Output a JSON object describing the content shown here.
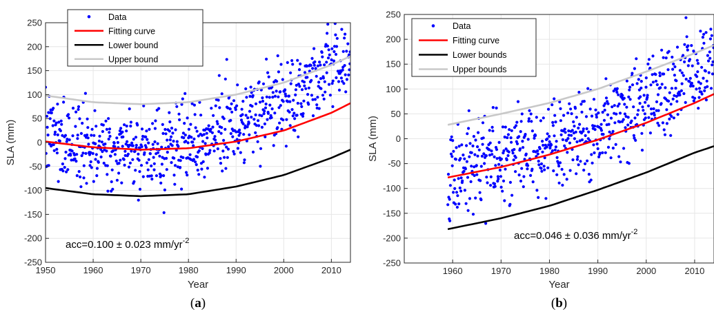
{
  "chart_data": [
    {
      "type": "scatter",
      "panel_label": "a",
      "xlabel": "Year",
      "ylabel": "SLA (mm)",
      "xlim": [
        1950,
        2014
      ],
      "ylim": [
        -250,
        250
      ],
      "x_ticks": [
        1950,
        1960,
        1970,
        1980,
        1990,
        2000,
        2010
      ],
      "y_ticks": [
        -250,
        -200,
        -150,
        -100,
        -50,
        0,
        50,
        100,
        150,
        200,
        250
      ],
      "grid": true,
      "legend": "top-left",
      "annotation": {
        "prefix": "acc=0.100 ± 0.023 mm/yr",
        "sup": "-2"
      },
      "series": [
        {
          "name": "Data",
          "kind": "points",
          "color": "#0000ff",
          "x_range": [
            1950,
            2014
          ],
          "n_points": 768,
          "trend_quadratic": [
            0.1,
            1968,
            -15
          ],
          "noise_sd": 42
        },
        {
          "name": "Fitting curve",
          "kind": "line",
          "color": "#ff0000",
          "x": [
            1950,
            1960,
            1970,
            1980,
            1990,
            2000,
            2010,
            2014
          ],
          "y": [
            2,
            -10,
            -15,
            -12,
            2,
            25,
            62,
            82
          ]
        },
        {
          "name": "Lower bound",
          "kind": "line",
          "color": "#000000",
          "x": [
            1950,
            1960,
            1970,
            1980,
            1990,
            2000,
            2010,
            2014
          ],
          "y": [
            -95,
            -108,
            -112,
            -108,
            -92,
            -68,
            -32,
            -15
          ]
        },
        {
          "name": "Upper bound",
          "kind": "line",
          "color": "#c8c8c8",
          "x": [
            1950,
            1960,
            1970,
            1980,
            1990,
            2000,
            2010,
            2014
          ],
          "y": [
            98,
            84,
            80,
            84,
            100,
            125,
            162,
            180
          ]
        }
      ]
    },
    {
      "type": "scatter",
      "panel_label": "b",
      "xlabel": "Year",
      "ylabel": "SLA (mm)",
      "xlim": [
        1950,
        2014
      ],
      "ylim": [
        -250,
        250
      ],
      "x_ticks": [
        1960,
        1970,
        1980,
        1990,
        2000,
        2010
      ],
      "y_ticks": [
        -250,
        -200,
        -150,
        -100,
        -50,
        0,
        50,
        100,
        150,
        200,
        250
      ],
      "grid": true,
      "legend": "top-left",
      "annotation": {
        "prefix": "acc=0.046 ± 0.036 mm/yr",
        "sup": "-2"
      },
      "series": [
        {
          "name": "Data",
          "kind": "points",
          "color": "#0000ff",
          "x_range": [
            1959,
            2014
          ],
          "n_points": 660,
          "trend_quadratic": [
            0.046,
            1940,
            -85
          ],
          "noise_sd": 45
        },
        {
          "name": "Fitting curve",
          "kind": "line",
          "color": "#ff0000",
          "x": [
            1959,
            1970,
            1980,
            1990,
            2000,
            2010,
            2014
          ],
          "y": [
            -78,
            -57,
            -32,
            -2,
            32,
            72,
            90
          ]
        },
        {
          "name": "Lower bounds",
          "kind": "line",
          "color": "#000000",
          "x": [
            1959,
            1970,
            1980,
            1990,
            2000,
            2010,
            2014
          ],
          "y": [
            -182,
            -160,
            -135,
            -103,
            -68,
            -28,
            -15
          ]
        },
        {
          "name": "Upper bounds",
          "kind": "line",
          "color": "#c8c8c8",
          "x": [
            1959,
            1970,
            1980,
            1990,
            2000,
            2010,
            2014
          ],
          "y": [
            28,
            50,
            72,
            100,
            135,
            172,
            188
          ]
        }
      ]
    }
  ]
}
